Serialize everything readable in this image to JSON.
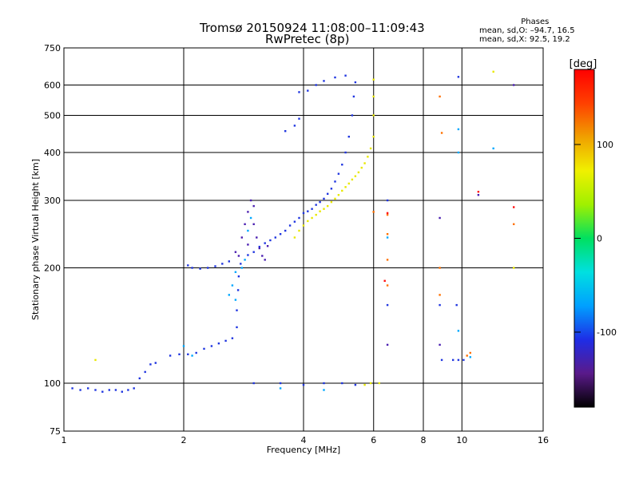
{
  "header": {
    "title_line1": "Tromsø 20150924 11:08:00–11:09:43",
    "title_line2": "RwPretec (8p)"
  },
  "stats": {
    "heading": "Phases",
    "line_o": "mean, sd,O: –94.7, 16.5",
    "line_x": "mean, sd,X:  92.5, 19.2"
  },
  "chart_data": {
    "type": "scatter",
    "title": "Tromsø 20150924 11:08:00–11:09:43",
    "subtitle": "RwPretec (8p)",
    "xlabel": "Frequency [MHz]",
    "ylabel": "Stationary phase Virtual Height [km]",
    "x_scale": "log",
    "y_scale": "log",
    "xlim": [
      1,
      16
    ],
    "ylim": [
      75,
      750
    ],
    "x_ticks": [
      1,
      2,
      4,
      6,
      8,
      10,
      16
    ],
    "y_ticks": [
      75,
      100,
      200,
      300,
      400,
      500,
      600,
      750
    ],
    "grid": true,
    "colorbar": {
      "label": "[deg]",
      "range": [
        -180,
        180
      ],
      "ticks": [
        100,
        0,
        -100
      ],
      "colors": [
        "#000000",
        "#5a1a8a",
        "#1e2de6",
        "#00a0ff",
        "#00e0e0",
        "#00e060",
        "#a0f000",
        "#f0f000",
        "#f0a000",
        "#ff4000",
        "#ff0000"
      ]
    },
    "series": [
      {
        "color": "#2036e0",
        "points": [
          [
            1.05,
            97
          ],
          [
            1.1,
            96
          ],
          [
            1.15,
            97
          ],
          [
            1.2,
            96
          ],
          [
            1.25,
            95
          ],
          [
            1.3,
            96
          ],
          [
            1.35,
            96
          ],
          [
            1.4,
            95
          ],
          [
            1.45,
            96
          ],
          [
            1.5,
            97
          ],
          [
            1.55,
            103
          ],
          [
            1.6,
            107
          ],
          [
            1.65,
            112
          ],
          [
            1.7,
            113
          ],
          [
            1.85,
            118
          ],
          [
            1.95,
            119
          ],
          [
            2.05,
            119
          ],
          [
            2.15,
            120
          ],
          [
            2.25,
            123
          ],
          [
            2.35,
            125
          ],
          [
            2.45,
            127
          ],
          [
            2.55,
            129
          ],
          [
            2.65,
            131
          ],
          [
            2.72,
            140
          ],
          [
            2.72,
            155
          ],
          [
            2.74,
            175
          ],
          [
            2.75,
            190
          ],
          [
            2.78,
            205
          ],
          [
            2.05,
            203
          ],
          [
            2.1,
            200
          ],
          [
            2.2,
            199
          ],
          [
            2.3,
            200
          ],
          [
            2.4,
            202
          ],
          [
            2.5,
            205
          ],
          [
            2.6,
            208
          ],
          [
            2.9,
            216
          ],
          [
            3.0,
            220
          ],
          [
            3.1,
            227
          ],
          [
            3.2,
            232
          ],
          [
            3.3,
            236
          ],
          [
            3.4,
            240
          ],
          [
            3.5,
            245
          ],
          [
            3.6,
            250
          ],
          [
            3.7,
            258
          ],
          [
            3.8,
            264
          ],
          [
            3.9,
            270
          ],
          [
            4.0,
            278
          ],
          [
            4.1,
            281
          ],
          [
            4.2,
            285
          ],
          [
            4.3,
            292
          ],
          [
            4.4,
            297
          ],
          [
            4.5,
            303
          ],
          [
            4.6,
            312
          ],
          [
            4.7,
            322
          ],
          [
            4.8,
            336
          ],
          [
            4.9,
            352
          ],
          [
            5.0,
            372
          ],
          [
            5.1,
            400
          ],
          [
            5.2,
            440
          ],
          [
            5.3,
            500
          ],
          [
            5.35,
            560
          ],
          [
            5.4,
            610
          ],
          [
            3.0,
            100
          ],
          [
            3.5,
            100
          ],
          [
            4.0,
            99
          ],
          [
            4.5,
            100
          ],
          [
            5.0,
            100
          ],
          [
            5.4,
            99
          ],
          [
            3.9,
            575
          ],
          [
            4.1,
            580
          ],
          [
            4.3,
            600
          ],
          [
            4.5,
            615
          ],
          [
            4.8,
            628
          ],
          [
            5.1,
            635
          ],
          [
            3.6,
            455
          ],
          [
            3.8,
            470
          ],
          [
            3.9,
            490
          ],
          [
            6.5,
            160
          ],
          [
            6.5,
            300
          ],
          [
            8.8,
            160
          ],
          [
            9.7,
            160
          ],
          [
            8.9,
            115
          ],
          [
            9.5,
            115
          ],
          [
            9.8,
            115
          ],
          [
            10.1,
            115
          ],
          [
            9.8,
            630
          ]
        ]
      },
      {
        "color": "#4a1fb0",
        "points": [
          [
            2.7,
            220
          ],
          [
            2.8,
            240
          ],
          [
            2.85,
            260
          ],
          [
            2.9,
            280
          ],
          [
            2.95,
            300
          ],
          [
            3.0,
            260
          ],
          [
            3.05,
            240
          ],
          [
            3.1,
            225
          ],
          [
            3.15,
            215
          ],
          [
            3.2,
            210
          ],
          [
            3.25,
            228
          ],
          [
            2.75,
            215
          ],
          [
            2.9,
            230
          ],
          [
            3.0,
            290
          ],
          [
            6.5,
            126
          ],
          [
            8.8,
            126
          ],
          [
            8.8,
            270
          ],
          [
            11.0,
            310
          ],
          [
            13.5,
            600
          ]
        ]
      },
      {
        "color": "#00a8ff",
        "points": [
          [
            2.6,
            170
          ],
          [
            2.65,
            180
          ],
          [
            2.7,
            195
          ],
          [
            2.8,
            200
          ],
          [
            2.85,
            210
          ],
          [
            2.9,
            250
          ],
          [
            2.95,
            270
          ],
          [
            2.0,
            125
          ],
          [
            2.1,
            118
          ],
          [
            2.7,
            165
          ],
          [
            6.5,
            240
          ],
          [
            9.8,
            460
          ],
          [
            9.8,
            400
          ],
          [
            12.0,
            410
          ],
          [
            9.8,
            137
          ],
          [
            10.5,
            117
          ],
          [
            4.5,
            96
          ],
          [
            3.5,
            97
          ]
        ]
      },
      {
        "color": "#e8e800",
        "points": [
          [
            3.8,
            240
          ],
          [
            3.9,
            250
          ],
          [
            4.0,
            258
          ],
          [
            4.1,
            265
          ],
          [
            4.2,
            270
          ],
          [
            4.3,
            275
          ],
          [
            4.4,
            281
          ],
          [
            4.5,
            285
          ],
          [
            4.6,
            290
          ],
          [
            4.7,
            297
          ],
          [
            4.8,
            303
          ],
          [
            4.9,
            310
          ],
          [
            5.0,
            318
          ],
          [
            5.1,
            325
          ],
          [
            5.2,
            332
          ],
          [
            5.3,
            340
          ],
          [
            5.4,
            347
          ],
          [
            5.5,
            355
          ],
          [
            5.6,
            365
          ],
          [
            5.7,
            375
          ],
          [
            5.8,
            390
          ],
          [
            5.9,
            410
          ],
          [
            6.0,
            440
          ],
          [
            6.0,
            500
          ],
          [
            6.0,
            560
          ],
          [
            6.0,
            620
          ],
          [
            5.9,
            100
          ],
          [
            5.7,
            99
          ],
          [
            6.2,
            100
          ],
          [
            1.2,
            115
          ],
          [
            13.5,
            200
          ],
          [
            12.0,
            650
          ]
        ]
      },
      {
        "color": "#ff7000",
        "points": [
          [
            6.5,
            180
          ],
          [
            6.5,
            210
          ],
          [
            6.5,
            245
          ],
          [
            6.5,
            275
          ],
          [
            8.8,
            170
          ],
          [
            8.8,
            200
          ],
          [
            8.9,
            450
          ],
          [
            8.8,
            560
          ],
          [
            10.3,
            118
          ],
          [
            10.5,
            120
          ],
          [
            13.5,
            260
          ],
          [
            6.0,
            280
          ]
        ]
      },
      {
        "color": "#ff1010",
        "points": [
          [
            6.4,
            185
          ],
          [
            6.5,
            278
          ],
          [
            11.0,
            316
          ],
          [
            13.5,
            288
          ]
        ]
      }
    ]
  }
}
